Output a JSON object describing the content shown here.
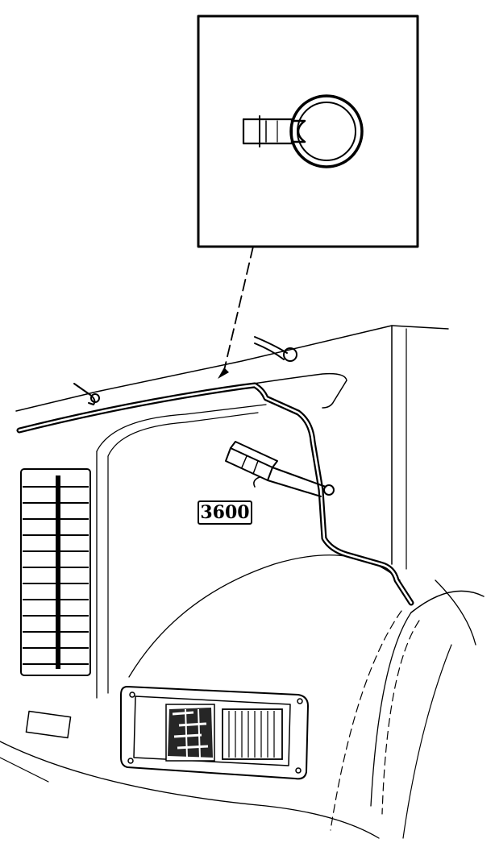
{
  "figure": {
    "emblem_text": "3600",
    "colors": {
      "ink": "#000000",
      "paper": "#ffffff"
    },
    "icons": [
      "connector-detail-inset",
      "wiring-harness",
      "hood-clip",
      "headlight-assembly",
      "grille"
    ]
  }
}
